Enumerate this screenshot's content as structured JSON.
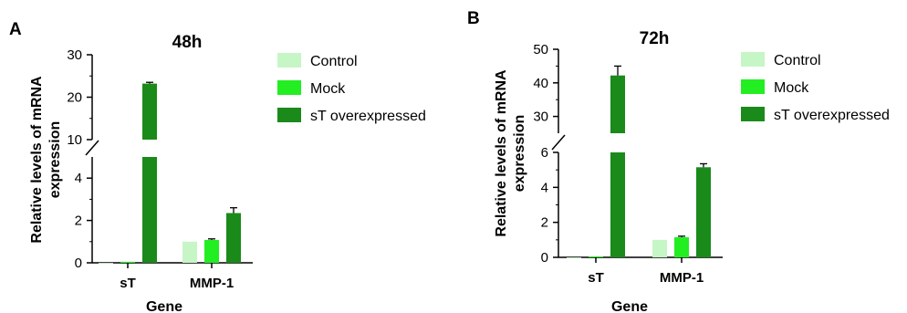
{
  "colors": {
    "control": "#c6f6c6",
    "mock": "#22ee22",
    "overexpressed": "#1a8a1a",
    "axis": "#000000"
  },
  "chart_data": [
    {
      "panel_label": "A",
      "title": "48h",
      "type": "bar",
      "xlabel": "Gene",
      "ylabel": "Relative levels of mRNA expression",
      "categories": [
        "sT",
        "MMP-1"
      ],
      "series": [
        {
          "name": "Control",
          "values": [
            0,
            1.0
          ],
          "errors": [
            0,
            0
          ]
        },
        {
          "name": "Mock",
          "values": [
            0.05,
            1.08
          ],
          "errors": [
            0,
            0.05
          ]
        },
        {
          "name": "sT overexpressed",
          "values": [
            23.2,
            2.35
          ],
          "errors": [
            0.3,
            0.25
          ]
        }
      ],
      "axis_break": {
        "lower_range": [
          0,
          5
        ],
        "upper_range": [
          10,
          30
        ]
      },
      "lower_ticks": [
        0,
        2,
        4
      ],
      "upper_ticks": [
        10,
        20,
        30
      ],
      "legend_position": "right"
    },
    {
      "panel_label": "B",
      "title": "72h",
      "type": "bar",
      "xlabel": "Gene",
      "ylabel": "Relative levels of mRNA expression",
      "categories": [
        "sT",
        "MMP-1"
      ],
      "series": [
        {
          "name": "Control",
          "values": [
            0,
            1.0
          ],
          "errors": [
            0,
            0
          ]
        },
        {
          "name": "Mock",
          "values": [
            0.05,
            1.15
          ],
          "errors": [
            0,
            0.06
          ]
        },
        {
          "name": "sT overexpressed",
          "values": [
            42.2,
            5.15
          ],
          "errors": [
            2.8,
            0.2
          ]
        }
      ],
      "axis_break": {
        "lower_range": [
          0,
          6
        ],
        "upper_range": [
          25,
          50
        ]
      },
      "lower_ticks": [
        0,
        2,
        4,
        6
      ],
      "upper_ticks": [
        30,
        40,
        50
      ],
      "legend_position": "right"
    }
  ]
}
